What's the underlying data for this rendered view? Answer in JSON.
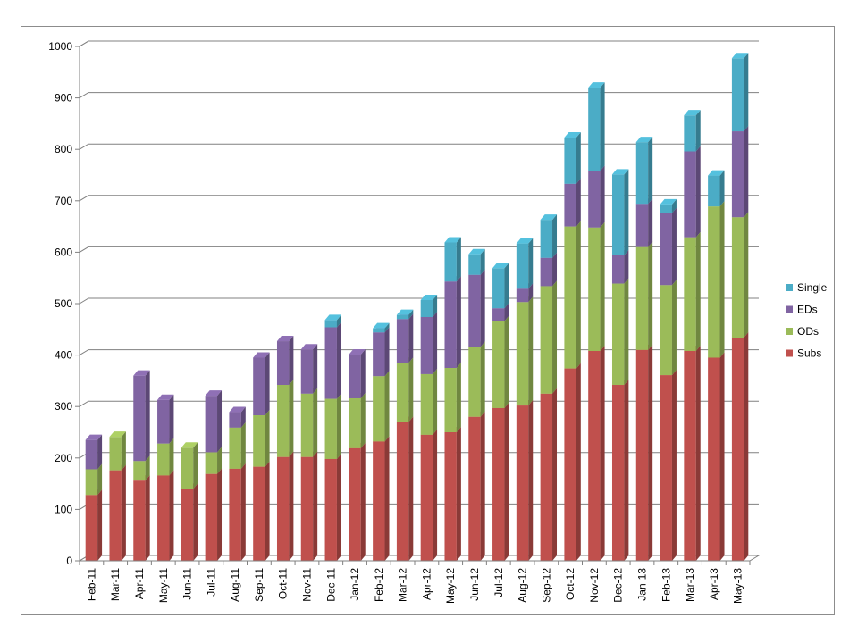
{
  "chart_data": {
    "type": "bar",
    "stacked": true,
    "style": "3d-column",
    "categories": [
      "Feb-11",
      "Mar-11",
      "Apr-11",
      "May-11",
      "Jun-11",
      "Jul-11",
      "Aug-11",
      "Sep-11",
      "Oct-11",
      "Nov-11",
      "Dec-11",
      "Jan-12",
      "Feb-12",
      "Mar-12",
      "Apr-12",
      "May-12",
      "Jun-12",
      "Jul-12",
      "Aug-12",
      "Sep-12",
      "Oct-12",
      "Nov-12",
      "Dec-12",
      "Jan-13",
      "Feb-13",
      "Mar-13",
      "Apr-13",
      "May-13"
    ],
    "series": [
      {
        "name": "Subs",
        "color": "#c0504d",
        "values": [
          128,
          176,
          156,
          166,
          140,
          169,
          179,
          183,
          202,
          202,
          198,
          219,
          232,
          270,
          245,
          250,
          280,
          297,
          302,
          325,
          374,
          408,
          342,
          410,
          361,
          408,
          395,
          434
        ]
      },
      {
        "name": "ODs",
        "color": "#9bbb59",
        "values": [
          50,
          65,
          38,
          62,
          80,
          42,
          80,
          100,
          140,
          123,
          117,
          97,
          127,
          115,
          118,
          125,
          136,
          169,
          201,
          209,
          276,
          240,
          197,
          200,
          175,
          221,
          294,
          234
        ]
      },
      {
        "name": "EDs",
        "color": "#8064a2",
        "values": [
          57,
          0,
          166,
          85,
          0,
          110,
          30,
          112,
          85,
          86,
          139,
          85,
          85,
          85,
          111,
          168,
          140,
          25,
          26,
          55,
          83,
          110,
          55,
          84,
          140,
          167,
          0,
          167
        ]
      },
      {
        "name": "Single",
        "color": "#4bacc6",
        "values": [
          0,
          0,
          0,
          0,
          0,
          0,
          0,
          0,
          0,
          0,
          14,
          0,
          8,
          8,
          33,
          76,
          40,
          78,
          88,
          74,
          90,
          162,
          157,
          120,
          17,
          70,
          60,
          142
        ]
      }
    ],
    "yticks": [
      "0",
      "100",
      "200",
      "300",
      "400",
      "500",
      "600",
      "700",
      "800",
      "900",
      "1000"
    ],
    "ylim": [
      0,
      1000
    ],
    "grid": true,
    "legend": "right",
    "legend_order": [
      "Single",
      "EDs",
      "ODs",
      "Subs"
    ],
    "title": "",
    "xlabel": "",
    "ylabel": ""
  }
}
